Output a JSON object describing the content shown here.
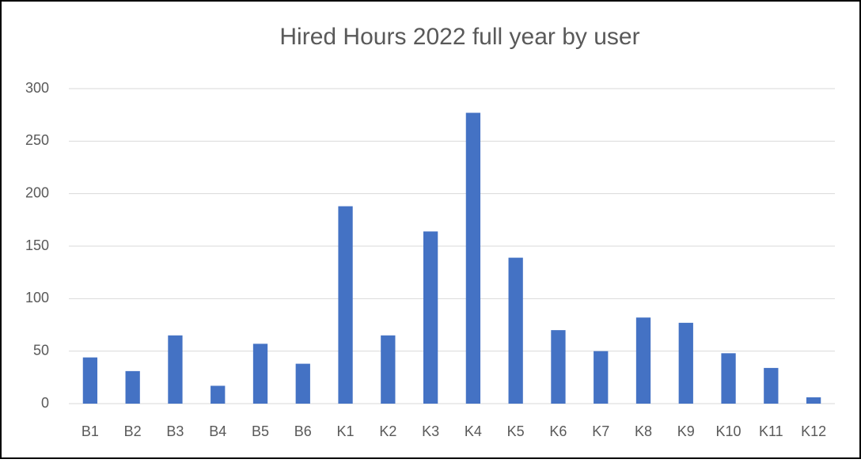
{
  "chart_data": {
    "type": "bar",
    "title": "Hired Hours 2022 full year by user",
    "categories": [
      "B1",
      "B2",
      "B3",
      "B4",
      "B5",
      "B6",
      "K1",
      "K2",
      "K3",
      "K4",
      "K5",
      "K6",
      "K7",
      "K8",
      "K9",
      "K10",
      "K11",
      "K12"
    ],
    "values": [
      44,
      31,
      65,
      17,
      57,
      38,
      188,
      65,
      164,
      277,
      139,
      70,
      50,
      82,
      77,
      48,
      34,
      6
    ],
    "color": "#4472c4",
    "ylim": [
      0,
      300
    ],
    "yticks": [
      0,
      50,
      100,
      150,
      200,
      250,
      300
    ],
    "grid": true
  }
}
